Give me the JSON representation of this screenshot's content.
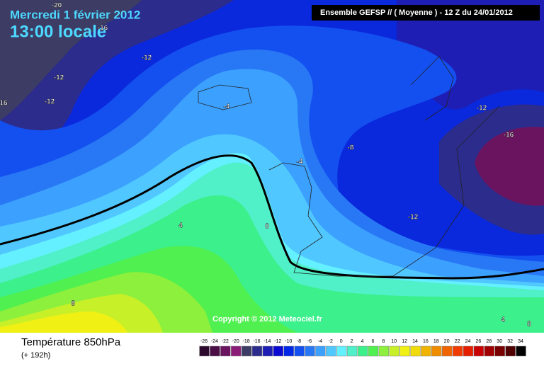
{
  "header": {
    "date": "Mercredi 1 février 2012",
    "time": "13:00 locale",
    "run": "Ensemble GEFSP // ( Moyenne )  -  12 Z du 24/01/2012"
  },
  "copyright": "Copyright © 2012 Meteociel.fr",
  "contour_labels": [
    "-20",
    "-16",
    "-12",
    "-12",
    "-12",
    "16",
    "-4",
    "-12",
    "-16",
    "-8",
    "-4",
    "-12",
    "0",
    "4",
    "8",
    "4",
    "8"
  ],
  "footer": {
    "title": "Température 850hPa",
    "lead": "(+ 192h)"
  },
  "legend": [
    {
      "value": -26,
      "color": "#2d0a2d"
    },
    {
      "value": -24,
      "color": "#4b0f46"
    },
    {
      "value": -22,
      "color": "#6a1460"
    },
    {
      "value": -20,
      "color": "#8a1c78"
    },
    {
      "value": -18,
      "color": "#3c3c64"
    },
    {
      "value": -16,
      "color": "#2c2c8c"
    },
    {
      "value": -14,
      "color": "#1e1eb4"
    },
    {
      "value": -12,
      "color": "#0a0ad2"
    },
    {
      "value": -10,
      "color": "#0028e6"
    },
    {
      "value": -8,
      "color": "#1450f0"
    },
    {
      "value": -6,
      "color": "#2878f5"
    },
    {
      "value": -4,
      "color": "#3ca0ff"
    },
    {
      "value": -2,
      "color": "#50c8ff"
    },
    {
      "value": 0,
      "color": "#64f0ff"
    },
    {
      "value": 2,
      "color": "#50f0c8"
    },
    {
      "value": 4,
      "color": "#3cf08c"
    },
    {
      "value": 6,
      "color": "#50f050"
    },
    {
      "value": 8,
      "color": "#8cf03c"
    },
    {
      "value": 10,
      "color": "#c8f028"
    },
    {
      "value": 12,
      "color": "#f0f014"
    },
    {
      "value": 14,
      "color": "#f0dc0a"
    },
    {
      "value": 16,
      "color": "#f0b400"
    },
    {
      "value": 18,
      "color": "#f08c00"
    },
    {
      "value": 20,
      "color": "#f06400"
    },
    {
      "value": 22,
      "color": "#f03c00"
    },
    {
      "value": 24,
      "color": "#e61e00"
    },
    {
      "value": 26,
      "color": "#c80000"
    },
    {
      "value": 28,
      "color": "#a00000"
    },
    {
      "value": 30,
      "color": "#780000"
    },
    {
      "value": 32,
      "color": "#500000"
    },
    {
      "value": 34,
      "color": "#000000"
    }
  ]
}
